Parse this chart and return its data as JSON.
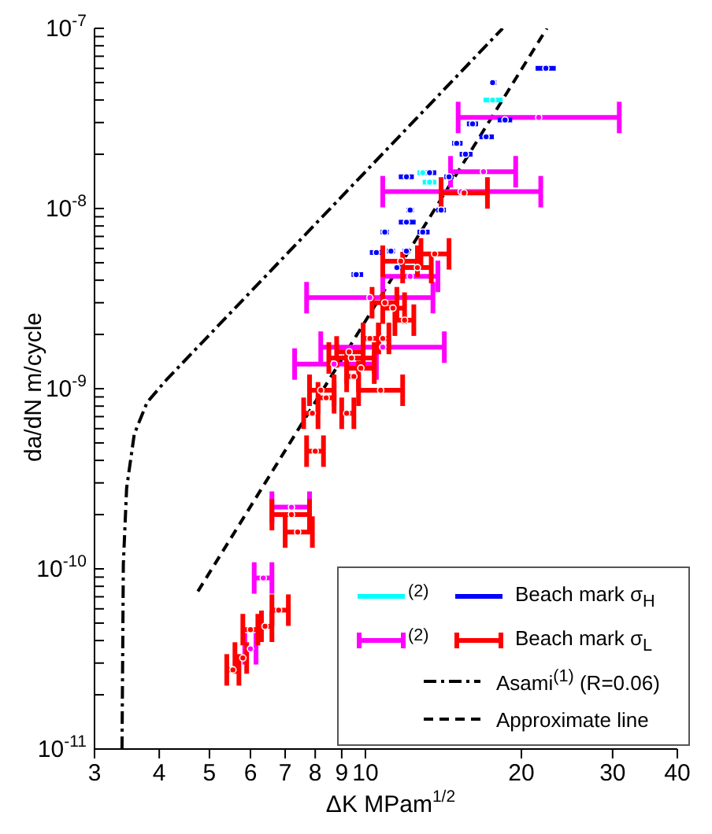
{
  "chart_data": {
    "type": "scatter",
    "xlabel": "ΔK MPam$^{1/2}$",
    "ylabel": "da/dN m/cycle",
    "log": "xy",
    "marker": "circle",
    "legend": "bottom right",
    "grid": false,
    "xlim": [
      3,
      40
    ],
    "xticks": [
      3,
      4,
      5,
      6,
      7,
      8,
      9,
      10,
      20,
      30,
      40
    ],
    "ylim": [
      1e-11,
      1e-07
    ],
    "yticks": [
      {
        "value": 1e-11,
        "label": "10$^{-11}$"
      },
      {
        "value": 2e-11,
        "label": null
      },
      {
        "value": 3e-11,
        "label": null
      },
      {
        "value": 4e-11,
        "label": null
      },
      {
        "value": 5e-11,
        "label": null
      },
      {
        "value": 6e-11,
        "label": null
      },
      {
        "value": 7e-11,
        "label": null
      },
      {
        "value": 8e-11,
        "label": null
      },
      {
        "value": 9e-11,
        "label": null
      },
      {
        "value": 1e-10,
        "label": "10$^{-10}$"
      },
      {
        "value": 2e-10,
        "label": null
      },
      {
        "value": 3e-10,
        "label": null
      },
      {
        "value": 4e-10,
        "label": null
      },
      {
        "value": 5e-10,
        "label": null
      },
      {
        "value": 6e-10,
        "label": null
      },
      {
        "value": 7e-10,
        "label": null
      },
      {
        "value": 8e-10,
        "label": null
      },
      {
        "value": 9e-10,
        "label": null
      },
      {
        "value": 1e-09,
        "label": "10$^{-9}$"
      },
      {
        "value": 2e-09,
        "label": null
      },
      {
        "value": 3e-09,
        "label": null
      },
      {
        "value": 4e-09,
        "label": null
      },
      {
        "value": 5e-09,
        "label": null
      },
      {
        "value": 6e-09,
        "label": null
      },
      {
        "value": 7e-09,
        "label": null
      },
      {
        "value": 8e-09,
        "label": null
      },
      {
        "value": 9e-09,
        "label": null
      },
      {
        "value": 1e-08,
        "label": "10$^{-8}$"
      },
      {
        "value": 2e-08,
        "label": null
      },
      {
        "value": 3e-08,
        "label": null
      },
      {
        "value": 4e-08,
        "label": null
      },
      {
        "value": 5e-08,
        "label": null
      },
      {
        "value": 6e-08,
        "label": null
      },
      {
        "value": 7e-08,
        "label": null
      },
      {
        "value": 8e-08,
        "label": null
      },
      {
        "value": 9e-08,
        "label": null
      },
      {
        "value": 1e-07,
        "label": "10$^{-7}$"
      }
    ],
    "series": [
      {
        "name": "Beach mark σ$_{H}$",
        "type": "scatter",
        "color": "#0000ff",
        "x": [
          22.3,
          17.6,
          18.6,
          16.1,
          17.1,
          15.0,
          15.6,
          12.0,
          13.3,
          14.5,
          12.2,
          14.0,
          12.0,
          10.9,
          12.9,
          10.5,
          11.2,
          12.0,
          9.6,
          11.5
        ],
        "values": [
          6e-08,
          5e-08,
          3.1e-08,
          2.95e-08,
          2.5e-08,
          2.3e-08,
          2e-08,
          1.5e-08,
          1.58e-08,
          1.5e-08,
          9.8e-09,
          9.8e-09,
          8.4e-09,
          7.4e-09,
          7.4e-09,
          5.7e-09,
          5.8e-09,
          5.8e-09,
          4.3e-09,
          4.7e-09
        ],
        "xerrors": [
          [
            21.3,
            23.3
          ],
          [
            17.4,
            17.9
          ],
          [
            18.0,
            19.2
          ],
          [
            15.7,
            16.5
          ],
          [
            16.6,
            17.7
          ],
          [
            14.7,
            15.4
          ],
          [
            15.2,
            16.1
          ],
          [
            11.6,
            12.4
          ],
          [
            13.0,
            13.7
          ],
          [
            14.2,
            14.8
          ],
          [
            12.0,
            12.4
          ],
          [
            13.7,
            14.3
          ],
          [
            11.6,
            12.5
          ],
          [
            10.7,
            11.1
          ],
          [
            12.6,
            13.3
          ],
          [
            10.2,
            10.7
          ],
          [
            11.0,
            11.4
          ],
          [
            11.8,
            12.2
          ],
          [
            9.4,
            9.9
          ],
          [
            11.4,
            11.7
          ]
        ]
      },
      {
        "name": "$^{(2)}$",
        "type": "scatter",
        "color": "#00ffff",
        "x": [
          17.6,
          12.9,
          13.3
        ],
        "values": [
          4e-08,
          1.58e-08,
          1.4e-08
        ],
        "xerrors": [
          [
            16.9,
            18.4
          ],
          [
            12.6,
            13.3
          ],
          [
            12.9,
            13.7
          ]
        ]
      },
      {
        "name": "Beach mark σ$_{L}$",
        "type": "scatter",
        "color": "#ff0000",
        "x": [
          15.5,
          13.6,
          11.7,
          12.6,
          10.9,
          11.3,
          11.9,
          10.2,
          10.8,
          9.3,
          9.4,
          9.8,
          9.5,
          8.2,
          10.7,
          8.4,
          7.9,
          9.2,
          8.0,
          7.2,
          7.4,
          6.8,
          6.4,
          6.0,
          5.8,
          5.55
        ],
        "values": [
          1.22e-08,
          5.6e-09,
          5.1e-09,
          4.7e-09,
          3e-09,
          2.8e-09,
          2.4e-09,
          1.9e-09,
          1.9e-09,
          1.6e-09,
          1.48e-09,
          1.3e-09,
          1.17e-09,
          9.8e-10,
          9.8e-10,
          8.9e-10,
          7.3e-10,
          7.3e-10,
          4.5e-10,
          2e-10,
          1.6e-10,
          5.9e-11,
          4.8e-11,
          4.6e-11,
          3.2e-11,
          2.75e-11
        ],
        "xerrors": [
          [
            14.0,
            17.2
          ],
          [
            12.8,
            14.5
          ],
          [
            10.8,
            12.6
          ],
          [
            11.8,
            13.4
          ],
          [
            10.3,
            11.5
          ],
          [
            10.8,
            11.9
          ],
          [
            11.4,
            12.4
          ],
          [
            9.9,
            10.6
          ],
          [
            10.6,
            11.1
          ],
          [
            8.8,
            9.9
          ],
          [
            8.5,
            10.4
          ],
          [
            9.2,
            10.4
          ],
          [
            9.2,
            9.7
          ],
          [
            7.8,
            8.7
          ],
          [
            9.7,
            11.8
          ],
          [
            8.1,
            8.7
          ],
          [
            7.6,
            8.1
          ],
          [
            9.0,
            9.5
          ],
          [
            7.7,
            8.3
          ],
          [
            6.6,
            7.8
          ],
          [
            7.0,
            7.9
          ],
          [
            6.6,
            7.1
          ],
          [
            6.3,
            6.6
          ],
          [
            5.8,
            6.2
          ],
          [
            5.6,
            5.9
          ],
          [
            5.4,
            5.7
          ]
        ]
      },
      {
        "name": "$^{(2)}$",
        "type": "scatter",
        "color": "#ff00ff",
        "x": [
          21.6,
          16.9,
          15.3,
          12.2,
          10.2,
          10.8,
          8.7,
          7.2,
          6.35,
          6.0
        ],
        "values": [
          3.2e-08,
          1.6e-08,
          1.24e-08,
          4.2e-09,
          3.2e-09,
          1.7e-09,
          1.37e-09,
          2.2e-10,
          8.9e-11,
          3.6e-11
        ],
        "xerrors": [
          [
            15.1,
            30.9
          ],
          [
            14.6,
            19.5
          ],
          [
            10.8,
            21.8
          ],
          [
            10.8,
            13.8
          ],
          [
            7.7,
            13.5
          ],
          [
            8.2,
            14.2
          ],
          [
            7.3,
            10.5
          ],
          [
            6.6,
            7.8
          ],
          [
            6.1,
            6.6
          ],
          [
            5.85,
            6.15
          ]
        ]
      },
      {
        "name": "Asami$^{(1)}$ (R=0.06)",
        "type": "line",
        "color": "#000000",
        "line_style": "dashdot",
        "marker": "none",
        "x": [
          3.39,
          3.41,
          3.46,
          3.58,
          3.79,
          4.13,
          18.4
        ],
        "values": [
          1e-11,
          1.06e-10,
          2.8e-10,
          5.6e-10,
          8.4e-10,
          1.12e-09,
          1e-07
        ]
      },
      {
        "name": "Approximate line",
        "type": "line",
        "color": "#000000",
        "line_style": "dashed",
        "marker": "none",
        "x": [
          4.75,
          22.4
        ],
        "values": [
          7.5e-11,
          1e-07
        ]
      }
    ]
  }
}
